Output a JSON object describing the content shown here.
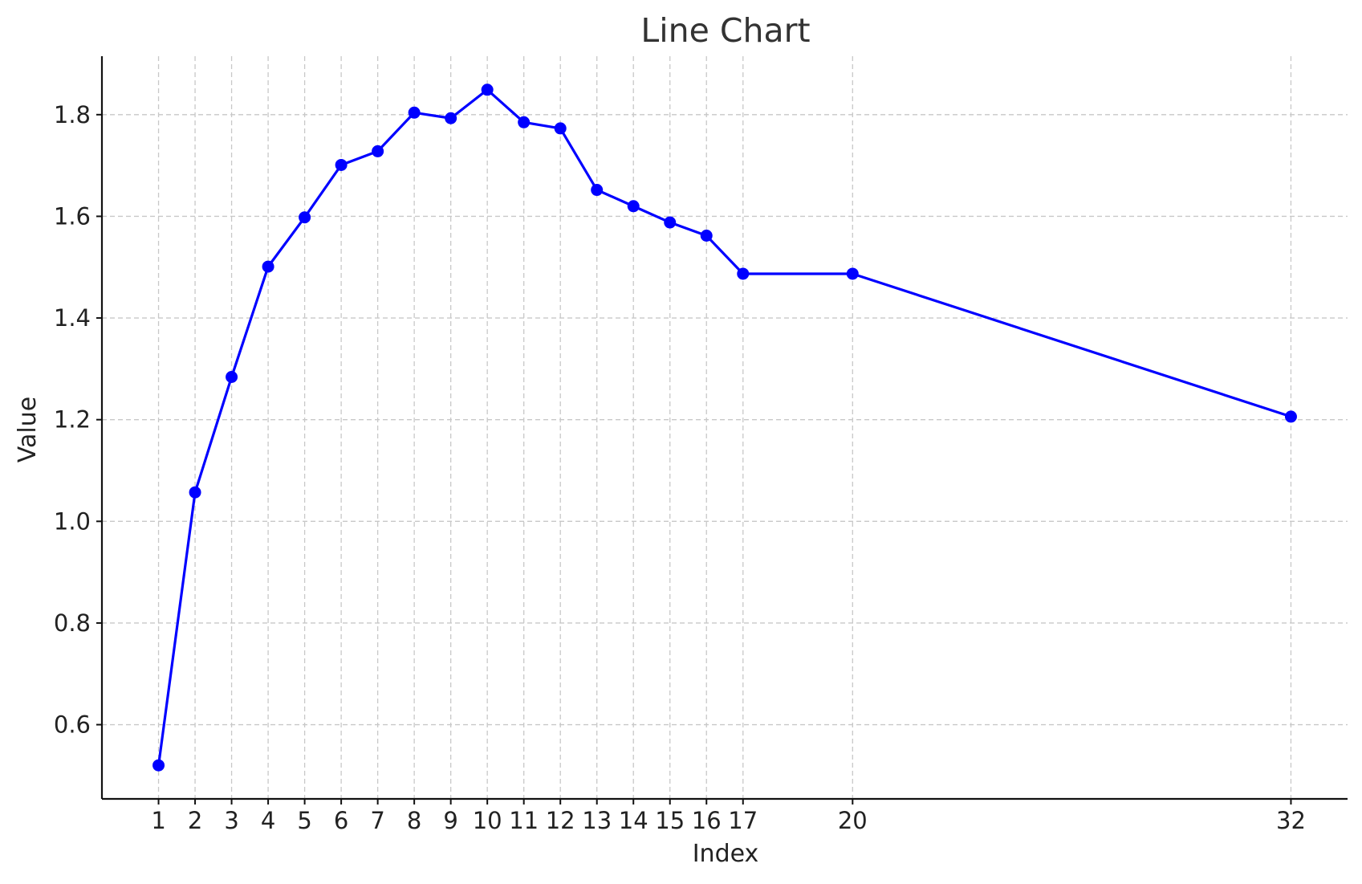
{
  "chart_data": {
    "type": "line",
    "title": "Line Chart",
    "xlabel": "Index",
    "ylabel": "Value",
    "x": [
      1,
      2,
      3,
      4,
      5,
      6,
      7,
      8,
      9,
      10,
      11,
      12,
      13,
      14,
      15,
      16,
      17,
      20,
      32
    ],
    "series": [
      {
        "values": [
          0.52,
          1.057,
          1.284,
          1.501,
          1.598,
          1.701,
          1.728,
          1.804,
          1.793,
          1.849,
          1.785,
          1.773,
          1.652,
          1.62,
          1.588,
          1.562,
          1.487,
          1.487,
          1.206
        ],
        "color": "#0000ff"
      }
    ],
    "xticks": [
      1,
      2,
      3,
      4,
      5,
      6,
      7,
      8,
      9,
      10,
      11,
      12,
      13,
      14,
      15,
      16,
      17,
      20,
      32
    ],
    "xtick_labels": [
      "1",
      "2",
      "3",
      "4",
      "5",
      "6",
      "7",
      "8",
      "9",
      "10",
      "11",
      "12",
      "13",
      "14",
      "15",
      "16",
      "17",
      "20",
      "32"
    ],
    "yticks": [
      0.6,
      0.8,
      1.0,
      1.2,
      1.4,
      1.6,
      1.8
    ],
    "ytick_labels": [
      "0.6",
      "0.8",
      "1.0",
      "1.2",
      "1.4",
      "1.6",
      "1.8"
    ],
    "xlim": [
      -0.55,
      33.55
    ],
    "ylim": [
      0.454,
      1.915
    ],
    "grid": true,
    "marker": "circle"
  }
}
